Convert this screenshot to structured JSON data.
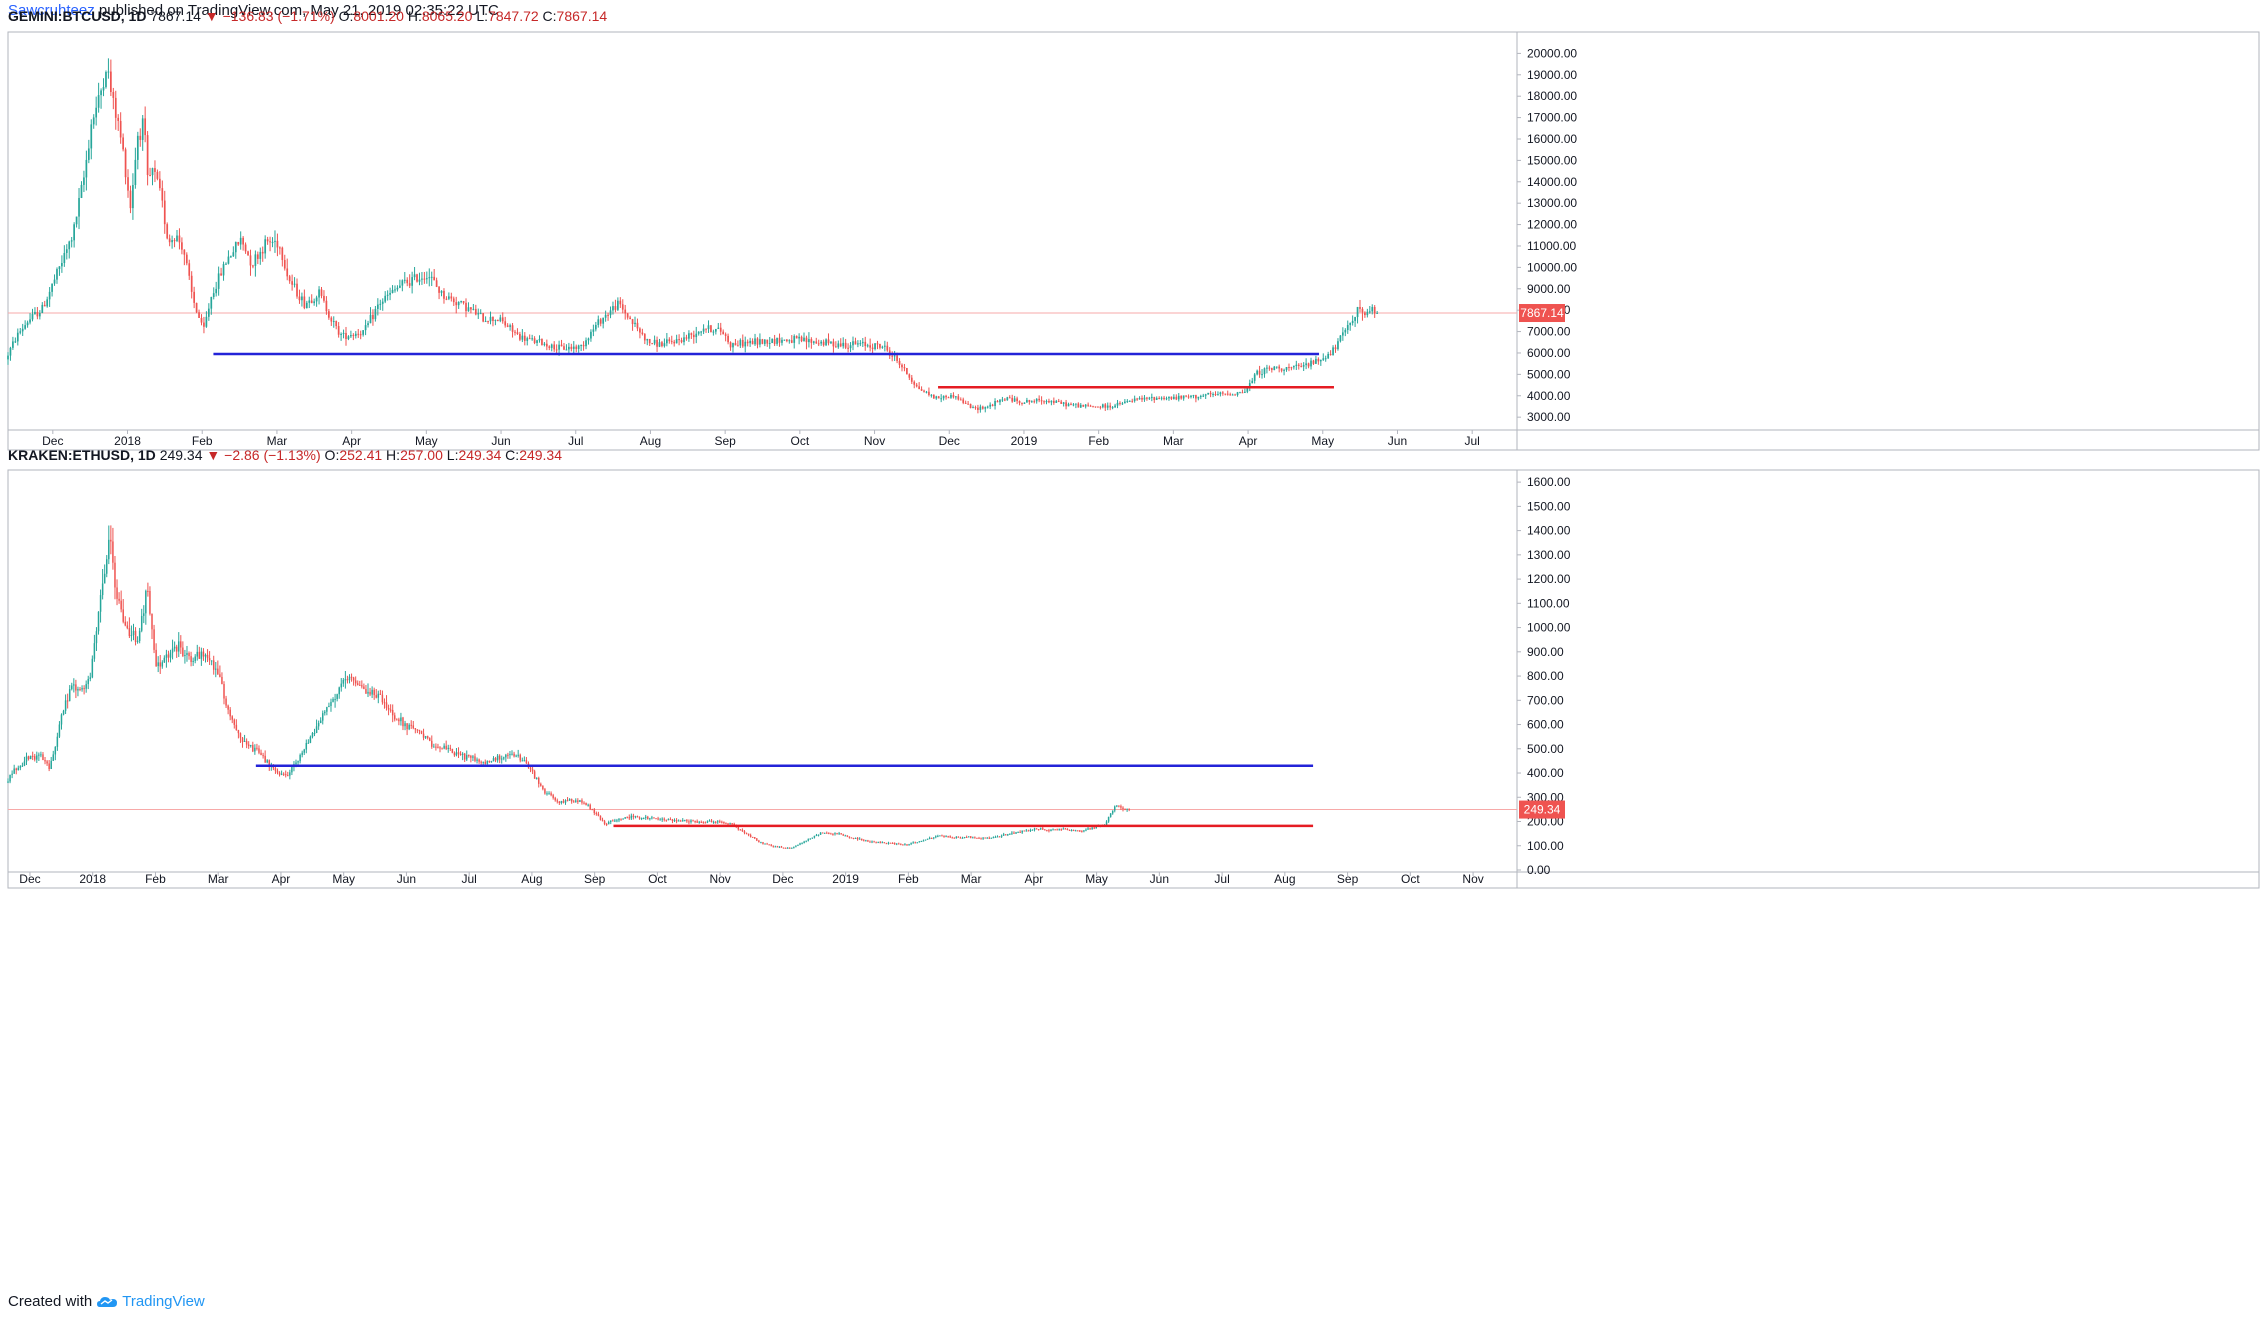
{
  "publication": {
    "author": "Sawcruhteez",
    "text": " published on TradingView.com, May 21, 2019 02:35:22 UTC"
  },
  "footer": {
    "created_with": "Created with",
    "brand": "TradingView",
    "logo_icon": "tradingview-logo-icon"
  },
  "colors": {
    "up": "#26a69a",
    "down": "#ef5350",
    "blue_line": "#2323d8",
    "red_line": "#e51c23",
    "text_red": "#c62828",
    "price_label_bg": "#ef5350"
  },
  "chart_data": [
    {
      "type": "candlestick",
      "symbol": "GEMINI:BTCUSD, 1D",
      "header": {
        "last": "7867.14",
        "change": "−136.83 (−1.71%)",
        "O": "8001.20",
        "H": "8065.20",
        "L": "7847.72",
        "C": "7867.14",
        "arrow": "▼"
      },
      "price_label": "7867.14",
      "last_price": 7867.14,
      "ylim": [
        2400,
        21000
      ],
      "yticks": [
        "20000.00",
        "19000.00",
        "18000.00",
        "17000.00",
        "16000.00",
        "15000.00",
        "14000.00",
        "13000.00",
        "12000.00",
        "11000.00",
        "10000.00",
        "9000.00",
        "8000.00",
        "7000.00",
        "6000.00",
        "5000.00",
        "4000.00",
        "3000.00"
      ],
      "xticks": [
        {
          "label": "Dec",
          "t": 0.0
        },
        {
          "label": "2018",
          "t": 1.0
        },
        {
          "label": "Feb",
          "t": 2.0
        },
        {
          "label": "Mar",
          "t": 3.0
        },
        {
          "label": "Apr",
          "t": 4.0
        },
        {
          "label": "May",
          "t": 5.0
        },
        {
          "label": "Jun",
          "t": 6.0
        },
        {
          "label": "Jul",
          "t": 7.0
        },
        {
          "label": "Aug",
          "t": 8.0
        },
        {
          "label": "Sep",
          "t": 9.0
        },
        {
          "label": "Oct",
          "t": 10.0
        },
        {
          "label": "Nov",
          "t": 11.0
        },
        {
          "label": "Dec",
          "t": 12.0
        },
        {
          "label": "2019",
          "t": 13.0
        },
        {
          "label": "Feb",
          "t": 14.0
        },
        {
          "label": "Mar",
          "t": 15.0
        },
        {
          "label": "Apr",
          "t": 16.0
        },
        {
          "label": "May",
          "t": 17.0
        },
        {
          "label": "Jun",
          "t": 18.0
        },
        {
          "label": "Jul",
          "t": 19.0
        }
      ],
      "t_range": [
        -0.6,
        19.6
      ],
      "series_path": [
        [
          -0.6,
          5700
        ],
        [
          -0.45,
          6800
        ],
        [
          -0.3,
          7500
        ],
        [
          -0.1,
          8100
        ],
        [
          0.1,
          9800
        ],
        [
          0.3,
          11500
        ],
        [
          0.45,
          14200
        ],
        [
          0.55,
          16800
        ],
        [
          0.65,
          17800
        ],
        [
          0.75,
          19500
        ],
        [
          0.82,
          18000
        ],
        [
          0.92,
          16500
        ],
        [
          1.0,
          14800
        ],
        [
          1.07,
          12800
        ],
        [
          1.17,
          16200
        ],
        [
          1.25,
          16800
        ],
        [
          1.3,
          14000
        ],
        [
          1.38,
          14500
        ],
        [
          1.48,
          13300
        ],
        [
          1.58,
          11200
        ],
        [
          1.68,
          11500
        ],
        [
          1.78,
          10900
        ],
        [
          1.9,
          8600
        ],
        [
          2.05,
          7000
        ],
        [
          2.15,
          8600
        ],
        [
          2.35,
          10300
        ],
        [
          2.55,
          11300
        ],
        [
          2.7,
          10200
        ],
        [
          2.9,
          11200
        ],
        [
          3.05,
          11200
        ],
        [
          3.2,
          9400
        ],
        [
          3.4,
          8300
        ],
        [
          3.6,
          8800
        ],
        [
          3.8,
          7300
        ],
        [
          3.9,
          6800
        ],
        [
          4.2,
          7000
        ],
        [
          4.4,
          8300
        ],
        [
          4.7,
          9200
        ],
        [
          5.05,
          9700
        ],
        [
          5.25,
          8700
        ],
        [
          5.5,
          8300
        ],
        [
          5.8,
          7600
        ],
        [
          6.0,
          7600
        ],
        [
          6.3,
          6700
        ],
        [
          6.55,
          6500
        ],
        [
          6.8,
          6200
        ],
        [
          7.1,
          6300
        ],
        [
          7.35,
          7500
        ],
        [
          7.6,
          8300
        ],
        [
          7.8,
          7400
        ],
        [
          8.0,
          6500
        ],
        [
          8.2,
          6400
        ],
        [
          8.5,
          6700
        ],
        [
          8.75,
          7200
        ],
        [
          9.0,
          7000
        ],
        [
          9.1,
          6400
        ],
        [
          9.4,
          6500
        ],
        [
          9.7,
          6600
        ],
        [
          10.0,
          6600
        ],
        [
          10.3,
          6500
        ],
        [
          10.6,
          6400
        ],
        [
          10.9,
          6400
        ],
        [
          11.15,
          6300
        ],
        [
          11.35,
          5600
        ],
        [
          11.6,
          4400
        ],
        [
          11.85,
          3900
        ],
        [
          12.1,
          4000
        ],
        [
          12.35,
          3400
        ],
        [
          12.55,
          3500
        ],
        [
          12.8,
          3900
        ],
        [
          13.0,
          3700
        ],
        [
          13.3,
          3800
        ],
        [
          13.6,
          3600
        ],
        [
          13.9,
          3500
        ],
        [
          14.2,
          3500
        ],
        [
          14.5,
          3800
        ],
        [
          14.8,
          3900
        ],
        [
          15.1,
          3900
        ],
        [
          15.4,
          4000
        ],
        [
          15.8,
          4100
        ],
        [
          16.0,
          4200
        ],
        [
          16.15,
          5100
        ],
        [
          16.4,
          5300
        ],
        [
          16.7,
          5300
        ],
        [
          16.95,
          5600
        ],
        [
          17.15,
          6000
        ],
        [
          17.3,
          6800
        ],
        [
          17.45,
          7800
        ],
        [
          17.55,
          8100
        ],
        [
          17.6,
          7700
        ],
        [
          17.7,
          8000
        ],
        [
          17.75,
          7867
        ]
      ],
      "lines": [
        {
          "color": "blue",
          "price": 5950,
          "t_from": 2.15,
          "t_to": 16.95
        },
        {
          "color": "red",
          "price": 4400,
          "t_from": 11.85,
          "t_to": 17.15
        }
      ]
    },
    {
      "type": "candlestick",
      "symbol": "KRAKEN:ETHUSD, 1D",
      "header": {
        "last": "249.34",
        "change": "−2.86 (−1.13%)",
        "O": "252.41",
        "H": "257.00",
        "L": "249.34",
        "C": "249.34",
        "arrow": "▼"
      },
      "price_label": "249.34",
      "last_price": 249.34,
      "ylim": [
        0,
        1650
      ],
      "yticks": [
        "1600.00",
        "1500.00",
        "1400.00",
        "1300.00",
        "1200.00",
        "1100.00",
        "1000.00",
        "900.00",
        "800.00",
        "700.00",
        "600.00",
        "500.00",
        "400.00",
        "300.00",
        "200.00",
        "100.00",
        "0.00"
      ],
      "xticks": [
        {
          "label": "Dec",
          "t": 0.0
        },
        {
          "label": "2018",
          "t": 1.0
        },
        {
          "label": "Feb",
          "t": 2.0
        },
        {
          "label": "Mar",
          "t": 3.0
        },
        {
          "label": "Apr",
          "t": 4.0
        },
        {
          "label": "May",
          "t": 5.0
        },
        {
          "label": "Jun",
          "t": 6.0
        },
        {
          "label": "Jul",
          "t": 7.0
        },
        {
          "label": "Aug",
          "t": 8.0
        },
        {
          "label": "Sep",
          "t": 9.0
        },
        {
          "label": "Oct",
          "t": 10.0
        },
        {
          "label": "Nov",
          "t": 11.0
        },
        {
          "label": "Dec",
          "t": 12.0
        },
        {
          "label": "2019",
          "t": 13.0
        },
        {
          "label": "Feb",
          "t": 14.0
        },
        {
          "label": "Mar",
          "t": 15.0
        },
        {
          "label": "Apr",
          "t": 16.0
        },
        {
          "label": "May",
          "t": 17.0
        },
        {
          "label": "Jun",
          "t": 18.0
        },
        {
          "label": "Jul",
          "t": 19.0
        },
        {
          "label": "Aug",
          "t": 20.0
        },
        {
          "label": "Sep",
          "t": 21.0
        },
        {
          "label": "Oct",
          "t": 22.0
        },
        {
          "label": "Nov",
          "t": 23.0
        }
      ],
      "t_range": [
        -0.35,
        23.7
      ],
      "series_path": [
        [
          -0.35,
          360
        ],
        [
          -0.2,
          420
        ],
        [
          0.0,
          460
        ],
        [
          0.2,
          470
        ],
        [
          0.35,
          420
        ],
        [
          0.55,
          650
        ],
        [
          0.7,
          760
        ],
        [
          0.85,
          730
        ],
        [
          1.0,
          800
        ],
        [
          1.1,
          1000
        ],
        [
          1.2,
          1200
        ],
        [
          1.3,
          1380
        ],
        [
          1.4,
          1150
        ],
        [
          1.55,
          1000
        ],
        [
          1.75,
          960
        ],
        [
          1.9,
          1150
        ],
        [
          2.05,
          830
        ],
        [
          2.2,
          880
        ],
        [
          2.4,
          920
        ],
        [
          2.6,
          870
        ],
        [
          2.8,
          880
        ],
        [
          3.0,
          840
        ],
        [
          3.2,
          650
        ],
        [
          3.45,
          520
        ],
        [
          3.7,
          480
        ],
        [
          3.95,
          400
        ],
        [
          4.1,
          385
        ],
        [
          4.35,
          470
        ],
        [
          4.6,
          600
        ],
        [
          4.85,
          700
        ],
        [
          5.1,
          790
        ],
        [
          5.35,
          740
        ],
        [
          5.55,
          730
        ],
        [
          5.75,
          660
        ],
        [
          6.0,
          600
        ],
        [
          6.2,
          570
        ],
        [
          6.45,
          520
        ],
        [
          6.65,
          500
        ],
        [
          6.9,
          470
        ],
        [
          7.1,
          460
        ],
        [
          7.3,
          440
        ],
        [
          7.55,
          470
        ],
        [
          7.8,
          470
        ],
        [
          8.0,
          420
        ],
        [
          8.2,
          330
        ],
        [
          8.45,
          280
        ],
        [
          8.75,
          290
        ],
        [
          8.95,
          260
        ],
        [
          9.2,
          190
        ],
        [
          9.4,
          210
        ],
        [
          9.6,
          220
        ],
        [
          9.8,
          215
        ],
        [
          10.1,
          210
        ],
        [
          10.4,
          205
        ],
        [
          10.7,
          200
        ],
        [
          11.0,
          200
        ],
        [
          11.2,
          190
        ],
        [
          11.45,
          150
        ],
        [
          11.7,
          110
        ],
        [
          11.95,
          95
        ],
        [
          12.15,
          90
        ],
        [
          12.4,
          120
        ],
        [
          12.65,
          155
        ],
        [
          12.9,
          150
        ],
        [
          13.2,
          130
        ],
        [
          13.45,
          115
        ],
        [
          13.75,
          110
        ],
        [
          14.0,
          105
        ],
        [
          14.25,
          120
        ],
        [
          14.5,
          140
        ],
        [
          14.75,
          135
        ],
        [
          15.0,
          135
        ],
        [
          15.25,
          130
        ],
        [
          15.5,
          140
        ],
        [
          15.75,
          155
        ],
        [
          16.0,
          170
        ],
        [
          16.25,
          165
        ],
        [
          16.5,
          170
        ],
        [
          16.75,
          160
        ],
        [
          17.0,
          175
        ],
        [
          17.15,
          185
        ],
        [
          17.25,
          230
        ],
        [
          17.35,
          270
        ],
        [
          17.45,
          255
        ],
        [
          17.55,
          249
        ]
      ],
      "lines": [
        {
          "color": "blue",
          "price": 430,
          "t_from": 3.6,
          "t_to": 20.45
        },
        {
          "color": "red",
          "price": 182,
          "t_from": 9.3,
          "t_to": 20.45
        }
      ]
    }
  ]
}
